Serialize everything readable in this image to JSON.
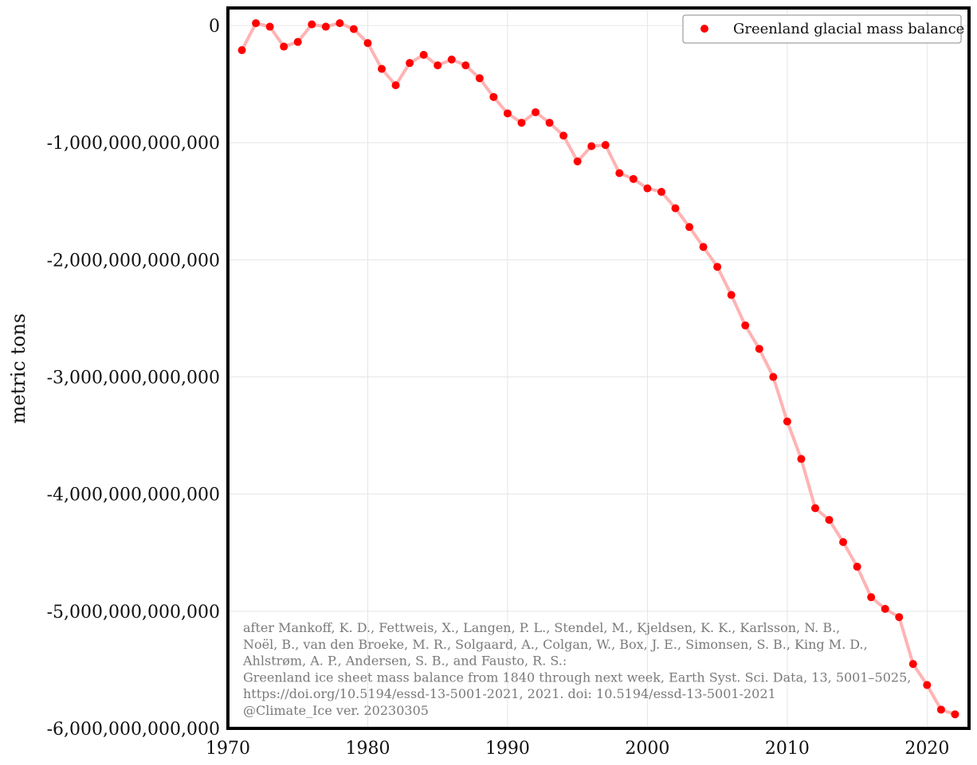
{
  "chart_data": {
    "type": "line",
    "title": "",
    "xlabel": "",
    "ylabel": "metric tons",
    "xlim": [
      1970,
      2023
    ],
    "ylim": [
      -6000000000000,
      150000000000
    ],
    "grid": true,
    "legend_placement": "top-right",
    "x_ticks": [
      1970,
      1980,
      1990,
      2000,
      2010,
      2020
    ],
    "y_ticks": [
      0,
      -1000000000000,
      -2000000000000,
      -3000000000000,
      -4000000000000,
      -5000000000000,
      -6000000000000
    ],
    "x_tick_labels": [
      "1970",
      "1980",
      "1990",
      "2000",
      "2010",
      "2020"
    ],
    "y_tick_labels": [
      "0",
      "-1,000,000,000,000",
      "-2,000,000,000,000",
      "-3,000,000,000,000",
      "-4,000,000,000,000",
      "-5,000,000,000,000",
      "-6,000,000,000,000"
    ],
    "series": [
      {
        "name": "Greenland glacial mass balance",
        "marker_color": "#ff0000",
        "line_color": "#ffb3b3",
        "x": [
          1971,
          1972,
          1973,
          1974,
          1975,
          1976,
          1977,
          1978,
          1979,
          1980,
          1981,
          1982,
          1983,
          1984,
          1985,
          1986,
          1987,
          1988,
          1989,
          1990,
          1991,
          1992,
          1993,
          1994,
          1995,
          1996,
          1997,
          1998,
          1999,
          2000,
          2001,
          2002,
          2003,
          2004,
          2005,
          2006,
          2007,
          2008,
          2009,
          2010,
          2011,
          2012,
          2013,
          2014,
          2015,
          2016,
          2017,
          2018,
          2019,
          2020,
          2021,
          2022
        ],
        "y": [
          -210000000000,
          20000000000,
          -10000000000,
          -180000000000,
          -140000000000,
          10000000000,
          -10000000000,
          20000000000,
          -30000000000,
          -150000000000,
          -370000000000,
          -510000000000,
          -320000000000,
          -250000000000,
          -340000000000,
          -290000000000,
          -340000000000,
          -450000000000,
          -610000000000,
          -750000000000,
          -830000000000,
          -740000000000,
          -830000000000,
          -940000000000,
          -1160000000000,
          -1030000000000,
          -1020000000000,
          -1260000000000,
          -1310000000000,
          -1390000000000,
          -1420000000000,
          -1560000000000,
          -1720000000000,
          -1890000000000,
          -2060000000000,
          -2300000000000,
          -2560000000000,
          -2760000000000,
          -3000000000000,
          -3380000000000,
          -3700000000000,
          -4120000000000,
          -4220000000000,
          -4410000000000,
          -4620000000000,
          -4880000000000,
          -4980000000000,
          -5050000000000,
          -5450000000000,
          -5630000000000,
          -5840000000000,
          -5880000000000
        ]
      }
    ],
    "annotation": [
      "after Mankoff, K. D., Fettweis, X., Langen, P. L., Stendel, M., Kjeldsen, K. K., Karlsson, N. B.,",
      "Noël, B., van den Broeke, M. R., Solgaard, A., Colgan, W., Box, J. E., Simonsen, S. B., King M. D.,",
      "Ahlstrøm, A. P., Andersen, S. B., and Fausto, R. S.:",
      "Greenland ice sheet mass balance from 1840 through next week, Earth Syst. Sci. Data, 13, 5001–5025,",
      "https://doi.org/10.5194/essd-13-5001-2021, 2021. doi: 10.5194/essd-13-5001-2021",
      "@Climate_Ice ver. 20230305"
    ]
  }
}
